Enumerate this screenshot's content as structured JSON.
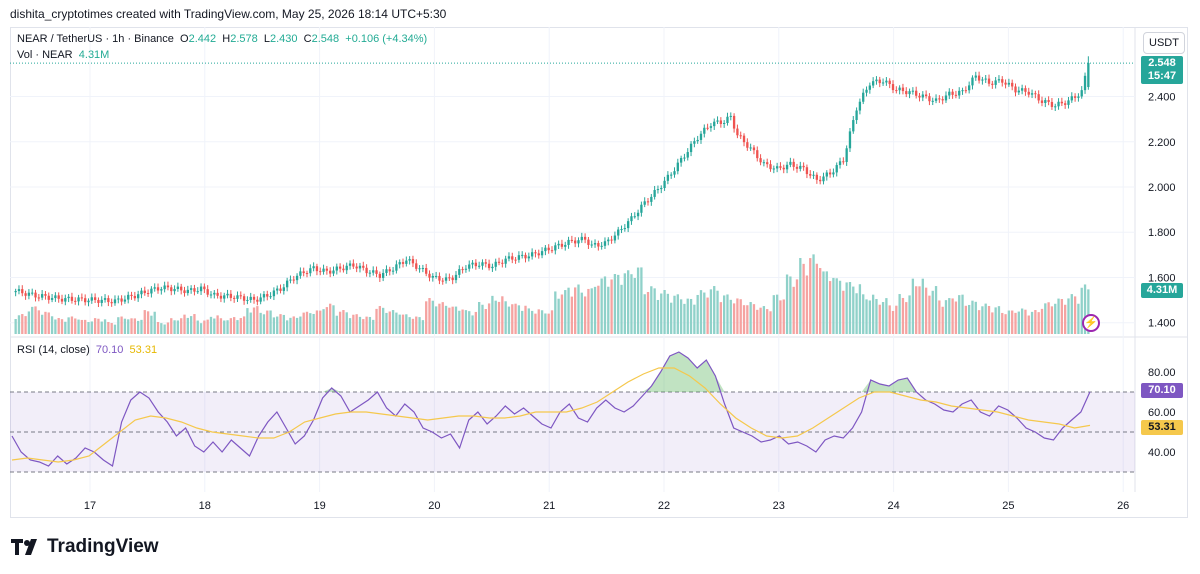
{
  "caption": "dishita_cryptotimes created with TradingView.com, May 25, 2026 18:14 UTC+5:30",
  "unit_button": "USDT",
  "legend": {
    "symbol": "NEAR / TetherUS · 1h · Binance",
    "o_label": "O",
    "o_value": "2.442",
    "h_label": "H",
    "h_value": "2.578",
    "l_label": "L",
    "l_value": "2.430",
    "c_label": "C",
    "c_value": "2.548",
    "change": "+0.106 (+4.34%)",
    "vol_label": "Vol · NEAR",
    "vol_value": "4.31M",
    "rsi_label": "RSI (14, close)",
    "rsi_value": "70.10",
    "rsi_ma_value": "53.31"
  },
  "badges": {
    "price": "2.548",
    "countdown": "15:47",
    "volume": "4.31M",
    "rsi": "70.10",
    "rsi_ma": "53.31"
  },
  "brand": "TradingView",
  "colors": {
    "up": "#26a69a",
    "down": "#ef5350",
    "rsi": "#7e57c2",
    "rsi_ma": "#f5c84c",
    "band": "#7e57c2"
  },
  "chart_data": {
    "type": "candlestick",
    "symbol": "NEAR / TetherUS",
    "interval": "1h",
    "price_axis": {
      "ticks": [
        1.4,
        1.6,
        1.8,
        2.0,
        2.2,
        2.4
      ],
      "tick_labels": [
        "1.400",
        "1.600",
        "1.800",
        "2.000",
        "2.200",
        "2.400"
      ],
      "range": [
        1.35,
        2.65
      ]
    },
    "x_axis": {
      "tick_labels": [
        "17",
        "18",
        "19",
        "20",
        "21",
        "22",
        "23",
        "24",
        "25",
        "26"
      ]
    },
    "last": {
      "open": 2.442,
      "high": 2.578,
      "low": 2.43,
      "close": 2.548,
      "volume": "4.31M"
    },
    "close_path": [
      [
        0,
        1.54
      ],
      [
        6,
        1.52
      ],
      [
        14,
        1.505
      ],
      [
        24,
        1.5
      ],
      [
        30,
        1.495
      ],
      [
        36,
        1.52
      ],
      [
        40,
        1.54
      ],
      [
        44,
        1.555
      ],
      [
        48,
        1.55
      ],
      [
        52,
        1.54
      ],
      [
        56,
        1.55
      ],
      [
        60,
        1.52
      ],
      [
        66,
        1.515
      ],
      [
        72,
        1.5
      ],
      [
        76,
        1.52
      ],
      [
        80,
        1.55
      ],
      [
        84,
        1.6
      ],
      [
        88,
        1.63
      ],
      [
        90,
        1.64
      ],
      [
        94,
        1.625
      ],
      [
        98,
        1.64
      ],
      [
        102,
        1.655
      ],
      [
        106,
        1.63
      ],
      [
        110,
        1.61
      ],
      [
        114,
        1.64
      ],
      [
        118,
        1.68
      ],
      [
        122,
        1.64
      ],
      [
        126,
        1.6
      ],
      [
        130,
        1.59
      ],
      [
        132,
        1.6
      ],
      [
        136,
        1.65
      ],
      [
        140,
        1.66
      ],
      [
        144,
        1.65
      ],
      [
        148,
        1.68
      ],
      [
        152,
        1.69
      ],
      [
        156,
        1.7
      ],
      [
        160,
        1.72
      ],
      [
        164,
        1.74
      ],
      [
        168,
        1.76
      ],
      [
        172,
        1.77
      ],
      [
        174,
        1.74
      ],
      [
        178,
        1.75
      ],
      [
        182,
        1.8
      ],
      [
        186,
        1.86
      ],
      [
        190,
        1.93
      ],
      [
        194,
        1.99
      ],
      [
        198,
        2.06
      ],
      [
        202,
        2.14
      ],
      [
        206,
        2.22
      ],
      [
        210,
        2.28
      ],
      [
        214,
        2.29
      ],
      [
        216,
        2.31
      ],
      [
        218,
        2.23
      ],
      [
        222,
        2.17
      ],
      [
        226,
        2.1
      ],
      [
        230,
        2.08
      ],
      [
        234,
        2.1
      ],
      [
        238,
        2.08
      ],
      [
        242,
        2.03
      ],
      [
        246,
        2.06
      ],
      [
        250,
        2.12
      ],
      [
        254,
        2.35
      ],
      [
        258,
        2.46
      ],
      [
        262,
        2.47
      ],
      [
        266,
        2.43
      ],
      [
        270,
        2.42
      ],
      [
        274,
        2.4
      ],
      [
        278,
        2.38
      ],
      [
        282,
        2.41
      ],
      [
        286,
        2.42
      ],
      [
        290,
        2.49
      ],
      [
        294,
        2.46
      ],
      [
        298,
        2.47
      ],
      [
        302,
        2.43
      ],
      [
        306,
        2.42
      ],
      [
        310,
        2.38
      ],
      [
        314,
        2.36
      ],
      [
        318,
        2.38
      ],
      [
        322,
        2.42
      ],
      [
        324,
        2.548
      ]
    ],
    "rsi": {
      "name": "RSI (14, close)",
      "axis_ticks": [
        40,
        60,
        80
      ],
      "axis_labels": [
        "40.00",
        "60.00",
        "80.00"
      ],
      "bands": {
        "upper": 70,
        "middle": 50,
        "lower": 30
      },
      "last": 70.1,
      "ma_last": 53.31,
      "values": [
        48,
        40,
        36,
        35,
        33,
        38,
        34,
        37,
        42,
        40,
        36,
        33,
        55,
        66,
        70,
        67,
        60,
        55,
        48,
        52,
        43,
        40,
        45,
        40,
        46,
        42,
        38,
        48,
        55,
        60,
        52,
        44,
        48,
        56,
        67,
        72,
        68,
        60,
        63,
        66,
        70,
        62,
        58,
        64,
        60,
        52,
        50,
        47,
        49,
        42,
        56,
        60,
        54,
        58,
        63,
        59,
        62,
        58,
        54,
        52,
        60,
        64,
        57,
        55,
        62,
        66,
        62,
        60,
        63,
        68,
        73,
        80,
        88,
        90,
        87,
        82,
        86,
        78,
        64,
        52,
        50,
        48,
        45,
        46,
        48,
        44,
        45,
        43,
        40,
        46,
        48,
        47,
        52,
        60,
        76,
        74,
        73,
        76,
        77,
        70,
        66,
        64,
        61,
        60,
        64,
        66,
        60,
        58,
        63,
        61,
        57,
        52,
        50,
        47,
        46,
        52,
        56,
        60,
        70.1
      ],
      "ma_values": [
        36,
        37,
        36,
        35,
        36,
        38,
        44,
        50,
        56,
        58,
        57,
        55,
        52,
        50,
        49,
        48,
        47,
        47,
        50,
        55,
        57,
        59,
        60,
        60,
        59,
        58,
        57,
        56,
        57,
        58,
        58,
        57,
        57,
        58,
        60,
        60,
        60,
        62,
        65,
        70,
        75,
        79,
        82,
        82,
        78,
        72,
        64,
        57,
        52,
        48,
        47,
        48,
        52,
        57,
        62,
        67,
        70,
        70,
        68,
        66,
        65,
        63,
        62,
        61,
        60,
        58,
        56,
        55,
        54,
        52,
        53.31
      ]
    },
    "volume": {
      "unit": "NEAR",
      "last": "4.31M",
      "relative_heights": [
        0.25,
        0.35,
        0.28,
        0.2,
        0.22,
        0.18,
        0.2,
        0.15,
        0.22,
        0.2,
        0.3,
        0.15,
        0.2,
        0.25,
        0.18,
        0.24,
        0.2,
        0.22,
        0.35,
        0.3,
        0.25,
        0.22,
        0.28,
        0.3,
        0.38,
        0.3,
        0.25,
        0.22,
        0.35,
        0.3,
        0.25,
        0.22,
        0.45,
        0.4,
        0.35,
        0.3,
        0.4,
        0.48,
        0.42,
        0.38,
        0.32,
        0.3,
        0.55,
        0.62,
        0.58,
        0.7,
        0.75,
        0.8,
        0.85,
        0.6,
        0.55,
        0.5,
        0.45,
        0.55,
        0.6,
        0.5,
        0.45,
        0.4,
        0.35,
        0.5,
        0.75,
        0.95,
        1.0,
        0.8,
        0.7,
        0.65,
        0.5,
        0.45,
        0.38,
        0.5,
        0.7,
        0.6,
        0.45,
        0.5,
        0.42,
        0.38,
        0.35,
        0.3,
        0.32,
        0.3,
        0.4,
        0.45,
        0.5,
        0.62
      ]
    }
  }
}
